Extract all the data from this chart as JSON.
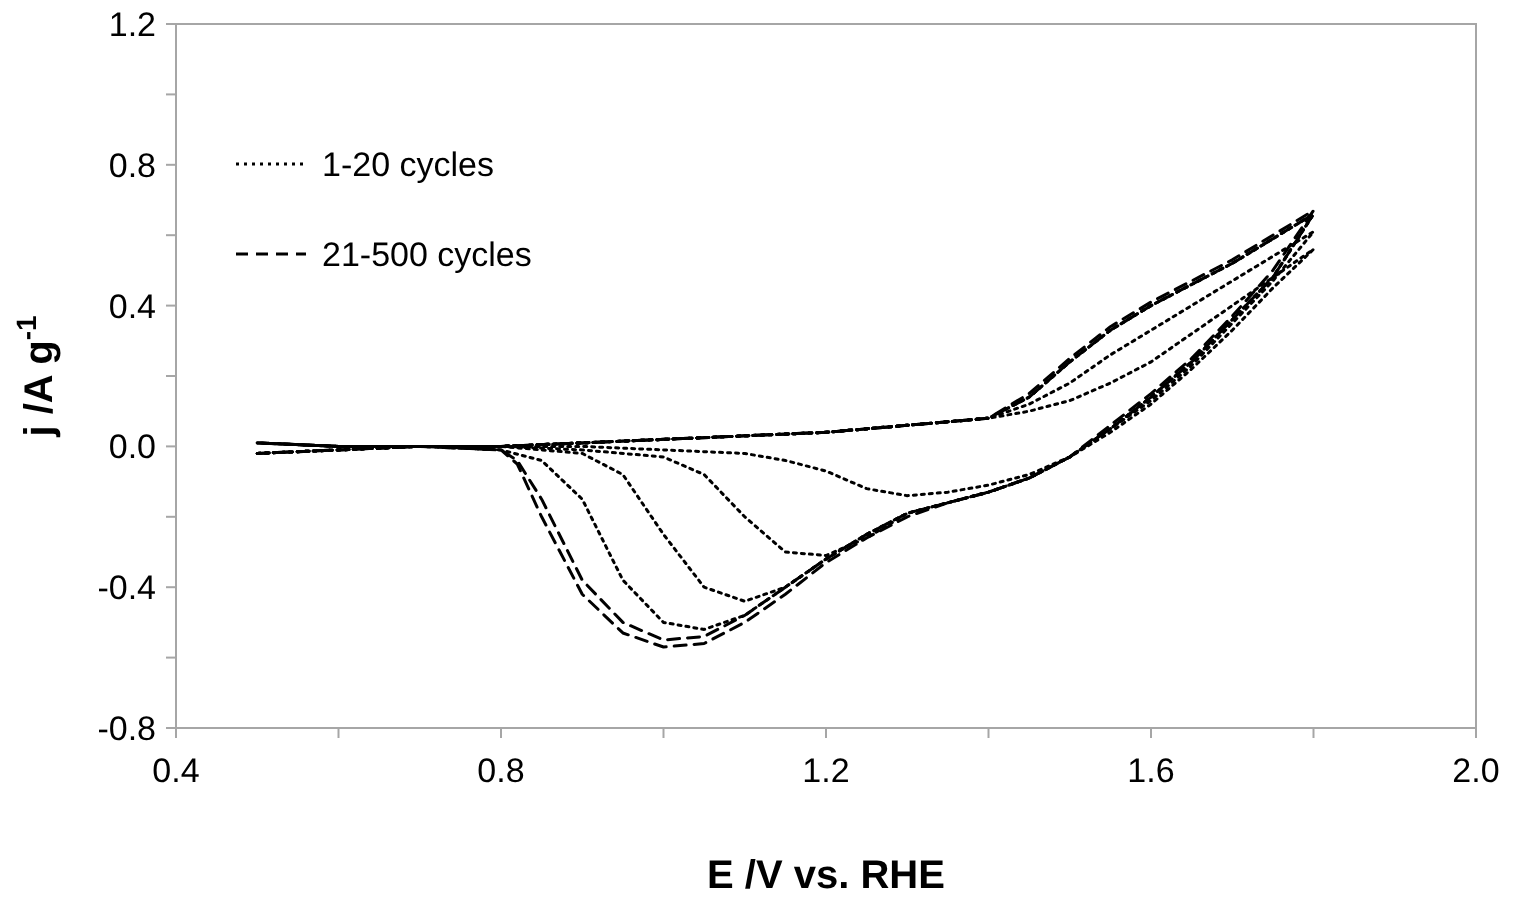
{
  "chart_data": {
    "type": "line",
    "xlabel": "E /V  vs. RHE",
    "ylabel": "j /A g$^{-1}$",
    "xlim": [
      0.4,
      2.0
    ],
    "ylim": [
      -0.8,
      1.2
    ],
    "xticks": [
      0.4,
      {
        "value": 0.6,
        "label": null
      },
      0.8,
      {
        "value": 1.0,
        "label": null
      },
      1.2,
      {
        "value": 1.4,
        "label": null
      },
      1.6,
      {
        "value": 1.8,
        "label": null
      },
      {
        "value": 2.0,
        "label": "2.0"
      }
    ],
    "yticks": [
      -0.8,
      {
        "value": -0.6,
        "label": null
      },
      -0.4,
      {
        "value": -0.2,
        "label": null
      },
      {
        "value": 0,
        "label": "0.0"
      },
      {
        "value": 0.2,
        "label": null
      },
      0.4,
      {
        "value": 0.6,
        "label": null
      },
      0.8,
      {
        "value": 1.0,
        "label": null
      },
      1.2
    ],
    "legend": "top left",
    "grid": false,
    "series": [
      {
        "name": "1-20 cycles",
        "color": "#000000",
        "line_style": "dotted",
        "x": [
          0.5,
          0.6,
          0.7,
          0.8,
          0.9,
          1.0,
          1.1,
          1.2,
          1.3,
          1.4,
          1.45,
          1.5,
          1.55,
          1.6,
          1.65,
          1.7,
          1.75,
          1.8,
          1.75,
          1.7,
          1.65,
          1.6,
          1.55,
          1.5,
          1.45,
          1.4,
          1.35,
          1.3,
          1.25,
          1.2,
          1.15,
          1.1,
          1.0,
          0.9,
          0.8,
          0.7,
          0.6,
          0.5
        ],
        "values": [
          -0.02,
          -0.01,
          0,
          0,
          0.01,
          0.02,
          0.03,
          0.04,
          0.06,
          0.08,
          0.1,
          0.13,
          0.18,
          0.24,
          0.32,
          0.4,
          0.48,
          0.56,
          0.45,
          0.33,
          0.22,
          0.12,
          0.04,
          -0.03,
          -0.08,
          -0.11,
          -0.13,
          -0.14,
          -0.12,
          -0.07,
          -0.04,
          -0.02,
          -0.01,
          0,
          0,
          0,
          0,
          0.01
        ]
      },
      {
        "color": "#000000",
        "line_style": "dotted",
        "x": [
          0.5,
          0.6,
          0.7,
          0.8,
          0.9,
          1.0,
          1.1,
          1.2,
          1.3,
          1.4,
          1.45,
          1.5,
          1.55,
          1.6,
          1.65,
          1.7,
          1.75,
          1.8,
          1.75,
          1.7,
          1.65,
          1.6,
          1.55,
          1.5,
          1.45,
          1.4,
          1.35,
          1.3,
          1.25,
          1.2,
          1.15,
          1.1,
          1.05,
          1.0,
          0.9,
          0.8,
          0.7,
          0.6,
          0.5
        ],
        "values": [
          -0.02,
          -0.01,
          0,
          0,
          0.01,
          0.02,
          0.03,
          0.04,
          0.06,
          0.08,
          0.12,
          0.18,
          0.26,
          0.33,
          0.4,
          0.47,
          0.54,
          0.61,
          0.47,
          0.35,
          0.23,
          0.13,
          0.05,
          -0.03,
          -0.09,
          -0.13,
          -0.16,
          -0.19,
          -0.26,
          -0.31,
          -0.3,
          -0.2,
          -0.08,
          -0.03,
          -0.01,
          0,
          0,
          0,
          0.01
        ]
      },
      {
        "color": "#000000",
        "line_style": "dotted",
        "x": [
          0.5,
          0.6,
          0.7,
          0.8,
          0.9,
          1.0,
          1.1,
          1.2,
          1.3,
          1.4,
          1.45,
          1.5,
          1.55,
          1.6,
          1.65,
          1.7,
          1.75,
          1.8,
          1.75,
          1.7,
          1.65,
          1.6,
          1.55,
          1.5,
          1.45,
          1.4,
          1.35,
          1.3,
          1.25,
          1.2,
          1.15,
          1.1,
          1.05,
          1.0,
          0.95,
          0.9,
          0.8,
          0.7,
          0.6,
          0.5
        ],
        "values": [
          -0.02,
          -0.01,
          0,
          0,
          0.01,
          0.02,
          0.03,
          0.04,
          0.06,
          0.08,
          0.14,
          0.24,
          0.33,
          0.4,
          0.46,
          0.52,
          0.59,
          0.66,
          0.48,
          0.36,
          0.24,
          0.14,
          0.05,
          -0.03,
          -0.09,
          -0.13,
          -0.16,
          -0.19,
          -0.25,
          -0.32,
          -0.4,
          -0.44,
          -0.4,
          -0.25,
          -0.08,
          -0.02,
          0,
          0,
          0,
          0.01
        ]
      },
      {
        "color": "#000000",
        "line_style": "dotted",
        "x": [
          0.5,
          0.6,
          0.7,
          0.8,
          0.9,
          1.0,
          1.1,
          1.2,
          1.3,
          1.4,
          1.45,
          1.5,
          1.55,
          1.6,
          1.65,
          1.7,
          1.75,
          1.8,
          1.75,
          1.7,
          1.65,
          1.6,
          1.55,
          1.5,
          1.45,
          1.4,
          1.35,
          1.3,
          1.25,
          1.2,
          1.15,
          1.1,
          1.05,
          1.0,
          0.95,
          0.9,
          0.85,
          0.8,
          0.7,
          0.6,
          0.5
        ],
        "values": [
          -0.02,
          -0.01,
          0,
          0,
          0.01,
          0.02,
          0.03,
          0.04,
          0.06,
          0.08,
          0.14,
          0.24,
          0.33,
          0.4,
          0.46,
          0.52,
          0.59,
          0.66,
          0.48,
          0.36,
          0.24,
          0.14,
          0.05,
          -0.03,
          -0.09,
          -0.13,
          -0.16,
          -0.19,
          -0.25,
          -0.32,
          -0.4,
          -0.48,
          -0.52,
          -0.5,
          -0.38,
          -0.15,
          -0.04,
          -0.01,
          0,
          0,
          0.01
        ]
      },
      {
        "name": "21-500 cycles",
        "color": "#000000",
        "line_style": "dashed",
        "x": [
          0.5,
          0.6,
          0.7,
          0.8,
          0.9,
          1.0,
          1.1,
          1.2,
          1.3,
          1.4,
          1.45,
          1.5,
          1.55,
          1.6,
          1.65,
          1.7,
          1.75,
          1.8,
          1.75,
          1.7,
          1.65,
          1.6,
          1.55,
          1.5,
          1.45,
          1.4,
          1.35,
          1.3,
          1.25,
          1.2,
          1.15,
          1.1,
          1.05,
          1.0,
          0.95,
          0.9,
          0.85,
          0.82,
          0.8,
          0.7,
          0.6,
          0.5
        ],
        "values": [
          -0.02,
          -0.01,
          0,
          0,
          0.01,
          0.02,
          0.03,
          0.04,
          0.06,
          0.08,
          0.14,
          0.24,
          0.33,
          0.4,
          0.46,
          0.52,
          0.59,
          0.66,
          0.48,
          0.36,
          0.24,
          0.14,
          0.05,
          -0.03,
          -0.09,
          -0.13,
          -0.16,
          -0.19,
          -0.25,
          -0.32,
          -0.4,
          -0.48,
          -0.54,
          -0.55,
          -0.5,
          -0.38,
          -0.15,
          -0.04,
          -0.01,
          0,
          0,
          0.01
        ]
      },
      {
        "color": "#000000",
        "line_style": "dashed",
        "x": [
          0.5,
          0.6,
          0.7,
          0.8,
          0.9,
          1.0,
          1.1,
          1.2,
          1.3,
          1.4,
          1.45,
          1.5,
          1.55,
          1.6,
          1.65,
          1.7,
          1.75,
          1.8,
          1.75,
          1.7,
          1.65,
          1.6,
          1.55,
          1.5,
          1.45,
          1.4,
          1.35,
          1.3,
          1.25,
          1.2,
          1.15,
          1.1,
          1.05,
          1.0,
          0.95,
          0.9,
          0.85,
          0.82,
          0.8,
          0.7,
          0.6,
          0.5
        ],
        "values": [
          -0.02,
          -0.01,
          0,
          0,
          0.01,
          0.02,
          0.03,
          0.04,
          0.06,
          0.08,
          0.15,
          0.25,
          0.34,
          0.41,
          0.47,
          0.53,
          0.6,
          0.67,
          0.5,
          0.37,
          0.25,
          0.15,
          0.06,
          -0.03,
          -0.09,
          -0.13,
          -0.16,
          -0.2,
          -0.26,
          -0.33,
          -0.42,
          -0.5,
          -0.56,
          -0.57,
          -0.53,
          -0.42,
          -0.2,
          -0.05,
          -0.01,
          0,
          0,
          0.01
        ]
      }
    ]
  }
}
